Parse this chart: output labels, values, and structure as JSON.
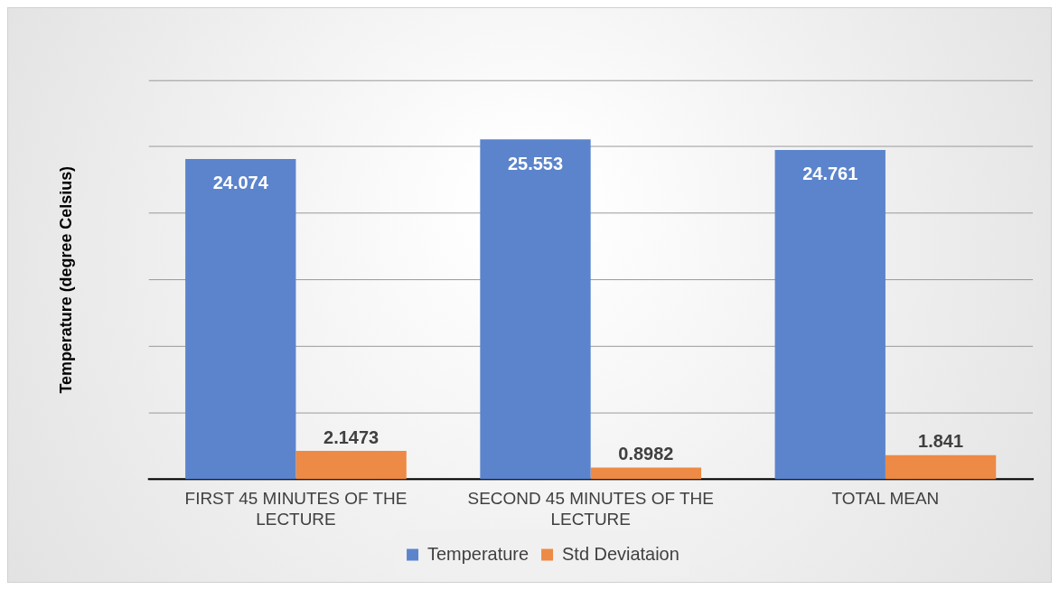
{
  "chart_data": {
    "type": "bar",
    "ylabel": "Temperature (degree Celsius)",
    "categories": [
      "FIRST 45 MINUTES OF THE LECTURE",
      "SECOND 45 MINUTES OF THE LECTURE",
      "TOTAL MEAN"
    ],
    "series": [
      {
        "name": "Temperature",
        "color": "#5b84cc",
        "values": [
          24.074,
          25.553,
          24.761
        ]
      },
      {
        "name": "Std Deviataion",
        "color": "#ed8a45",
        "values": [
          2.1473,
          0.8982,
          1.841
        ]
      }
    ],
    "ylim": [
      0,
      30
    ],
    "yticks": [
      {
        "value": 0,
        "label": null
      },
      {
        "value": 5,
        "label": null
      },
      {
        "value": 10,
        "label": null
      },
      {
        "value": 15,
        "label": null
      },
      {
        "value": 20,
        "label": null
      },
      {
        "value": 25,
        "label": null
      },
      {
        "value": 30,
        "label": null
      }
    ],
    "tick_labels": "x",
    "grid": "y",
    "legend": "bottom",
    "data_labels": true
  }
}
